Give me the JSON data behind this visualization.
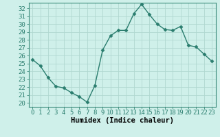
{
  "x": [
    0,
    1,
    2,
    3,
    4,
    5,
    6,
    7,
    8,
    9,
    10,
    11,
    12,
    13,
    14,
    15,
    16,
    17,
    18,
    19,
    20,
    21,
    22,
    23
  ],
  "y": [
    25.5,
    24.7,
    23.2,
    22.1,
    21.9,
    21.3,
    20.8,
    20.1,
    22.2,
    26.7,
    28.5,
    29.2,
    29.2,
    31.3,
    32.5,
    31.2,
    30.0,
    29.3,
    29.2,
    29.7,
    27.3,
    27.1,
    26.2,
    25.3
  ],
  "line_color": "#2a7d6e",
  "marker": "D",
  "marker_size": 2.5,
  "bg_color": "#cff0ea",
  "grid_color": "#b0d8d0",
  "xlabel": "Humidex (Indice chaleur)",
  "xlim": [
    -0.5,
    23.5
  ],
  "ylim": [
    19.5,
    32.7
  ],
  "yticks": [
    20,
    21,
    22,
    23,
    24,
    25,
    26,
    27,
    28,
    29,
    30,
    31,
    32
  ],
  "xticks": [
    0,
    1,
    2,
    3,
    4,
    5,
    6,
    7,
    8,
    9,
    10,
    11,
    12,
    13,
    14,
    15,
    16,
    17,
    18,
    19,
    20,
    21,
    22,
    23
  ],
  "tick_fontsize": 6.5,
  "xlabel_fontsize": 7.5,
  "line_width": 1.0,
  "spine_color": "#3a8a7a",
  "tick_color": "#2a7d6e"
}
